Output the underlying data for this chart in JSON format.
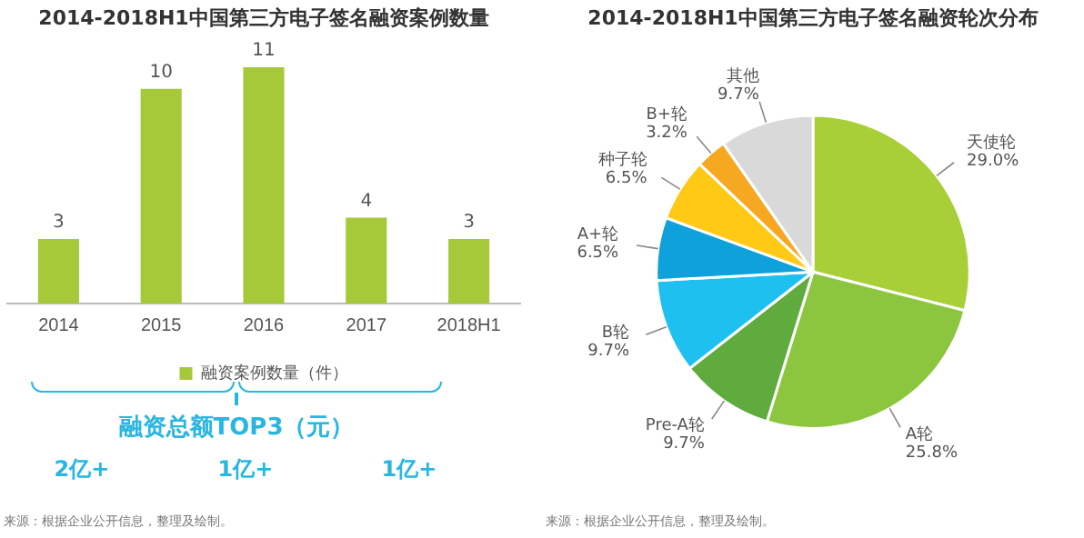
{
  "chart_data": [
    {
      "type": "bar",
      "title": "2014-2018H1中国第三方电子签名融资案例数量",
      "categories": [
        "2014",
        "2015",
        "2016",
        "2017",
        "2018H1"
      ],
      "series": [
        {
          "name": "融资案例数量（件）",
          "color": "#a6c93a",
          "values": [
            3,
            10,
            11,
            4,
            3
          ]
        }
      ],
      "data_labels": true,
      "legend": "bottom",
      "grid": false,
      "annotations": [
        "融资总额TOP3（元）",
        "2亿+",
        "1亿+",
        "1亿+",
        "来源：根据企业公开信息，整理及绘制。"
      ]
    },
    {
      "type": "pie",
      "title": "2014-2018H1中国第三方电子签名融资轮次分布",
      "categories": [
        "天使轮",
        "A轮",
        "Pre-A轮",
        "B轮",
        "A+轮",
        "种子轮",
        "B+轮",
        "其他"
      ],
      "values": [
        29.0,
        25.8,
        9.7,
        9.7,
        6.5,
        6.5,
        3.2,
        9.7
      ],
      "value_labels": [
        "29.0%",
        "25.8%",
        "9.7%",
        "9.7%",
        "6.5%",
        "6.5%",
        "3.2%",
        "9.7%"
      ],
      "colors": [
        "#a9cf38",
        "#8cc63f",
        "#5fab3e",
        "#1ec0f0",
        "#0ea1dc",
        "#ffc915",
        "#f7a821",
        "#d9d9d9"
      ],
      "legend": false,
      "annotations": [
        "来源：根据企业公开信息，整理及绘制。"
      ]
    }
  ]
}
